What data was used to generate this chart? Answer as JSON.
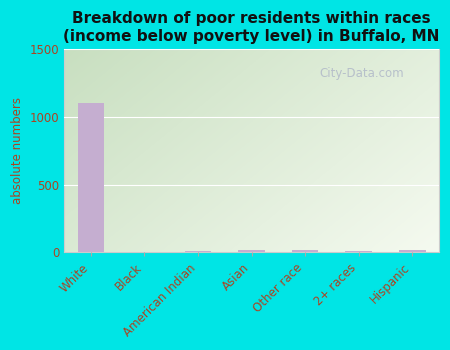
{
  "title": "Breakdown of poor residents within races\n(income below poverty level) in Buffalo, MN",
  "categories": [
    "White",
    "Black",
    "American Indian",
    "Asian",
    "Other race",
    "2+ races",
    "Hispanic"
  ],
  "values": [
    1100,
    0,
    10,
    15,
    20,
    12,
    18
  ],
  "bar_color": "#c5aed0",
  "ylabel": "absolute numbers",
  "ylim": [
    0,
    1500
  ],
  "yticks": [
    0,
    500,
    1000,
    1500
  ],
  "bg_top_left_color": "#c8dfc0",
  "bg_bottom_right_color": "#f5faf0",
  "outer_bg": "#00e5e5",
  "watermark": "City-Data.com",
  "watermark_icon": "ⓘ",
  "title_fontsize": 11,
  "tick_label_color": "#aa4422",
  "tick_fontsize": 8.5
}
